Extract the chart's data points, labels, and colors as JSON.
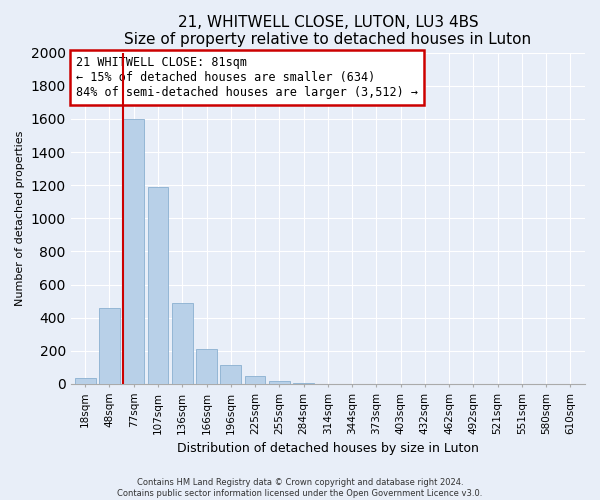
{
  "title": "21, WHITWELL CLOSE, LUTON, LU3 4BS",
  "subtitle": "Size of property relative to detached houses in Luton",
  "xlabel": "Distribution of detached houses by size in Luton",
  "ylabel": "Number of detached properties",
  "bar_labels": [
    "18sqm",
    "48sqm",
    "77sqm",
    "107sqm",
    "136sqm",
    "166sqm",
    "196sqm",
    "225sqm",
    "255sqm",
    "284sqm",
    "314sqm",
    "344sqm",
    "373sqm",
    "403sqm",
    "432sqm",
    "462sqm",
    "492sqm",
    "521sqm",
    "551sqm",
    "580sqm",
    "610sqm"
  ],
  "bar_values": [
    35,
    460,
    1600,
    1190,
    490,
    210,
    115,
    45,
    20,
    5,
    0,
    0,
    0,
    0,
    0,
    0,
    0,
    0,
    0,
    0,
    0
  ],
  "bar_color": "#b8d0e8",
  "highlight_bar_index": 2,
  "highlight_color": "#cc0000",
  "annotation_title": "21 WHITWELL CLOSE: 81sqm",
  "annotation_line1": "← 15% of detached houses are smaller (634)",
  "annotation_line2": "84% of semi-detached houses are larger (3,512) →",
  "ylim": [
    0,
    2000
  ],
  "yticks": [
    0,
    200,
    400,
    600,
    800,
    1000,
    1200,
    1400,
    1600,
    1800,
    2000
  ],
  "footer_line1": "Contains HM Land Registry data © Crown copyright and database right 2024.",
  "footer_line2": "Contains public sector information licensed under the Open Government Licence v3.0.",
  "bg_color": "#e8eef8",
  "plot_bg_color": "#e8eef8",
  "grid_color": "#ffffff",
  "title_fontsize": 11,
  "subtitle_fontsize": 9,
  "ylabel_fontsize": 8,
  "xlabel_fontsize": 9,
  "tick_fontsize": 7.5,
  "annot_fontsize": 8.5
}
